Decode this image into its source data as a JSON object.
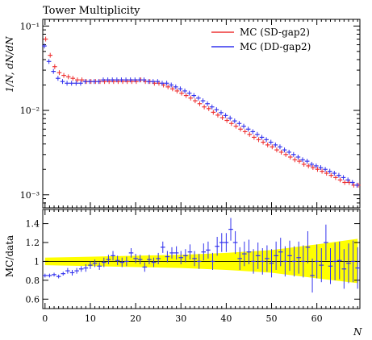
{
  "chart_data": [
    {
      "panel": "main",
      "type": "scatter",
      "title": "Tower Multiplicity",
      "xlabel": "",
      "ylabel": "1/N, dN/dN",
      "yscale": "log",
      "xlim": [
        -0.5,
        69.5
      ],
      "ylim": [
        0.0007,
        0.12
      ],
      "ytick_labels": [
        "10⁻¹",
        "10⁻²",
        "10⁻³"
      ],
      "legend_placement": "top-right",
      "series": [
        {
          "name": "MC (SD-gap2)",
          "color": "#ee3333",
          "x": [
            0,
            1,
            2,
            3,
            4,
            5,
            6,
            7,
            8,
            9,
            10,
            11,
            12,
            13,
            14,
            15,
            16,
            17,
            18,
            19,
            20,
            21,
            22,
            23,
            24,
            25,
            26,
            27,
            28,
            29,
            30,
            31,
            32,
            33,
            34,
            35,
            36,
            37,
            38,
            39,
            40,
            41,
            42,
            43,
            44,
            45,
            46,
            47,
            48,
            49,
            50,
            51,
            52,
            53,
            54,
            55,
            56,
            57,
            58,
            59,
            60,
            61,
            62,
            63,
            64,
            65,
            66,
            67,
            68,
            69
          ],
          "y": [
            0.07,
            0.045,
            0.033,
            0.028,
            0.026,
            0.025,
            0.024,
            0.023,
            0.023,
            0.022,
            0.022,
            0.022,
            0.022,
            0.022,
            0.022,
            0.022,
            0.022,
            0.022,
            0.022,
            0.022,
            0.022,
            0.023,
            0.022,
            0.022,
            0.021,
            0.021,
            0.02,
            0.019,
            0.018,
            0.017,
            0.016,
            0.015,
            0.014,
            0.013,
            0.012,
            0.011,
            0.0105,
            0.0095,
            0.0088,
            0.0082,
            0.0076,
            0.007,
            0.0065,
            0.006,
            0.0056,
            0.0052,
            0.0048,
            0.0045,
            0.0042,
            0.0039,
            0.0037,
            0.0034,
            0.0032,
            0.003,
            0.0028,
            0.0026,
            0.0025,
            0.0023,
            0.0022,
            0.0021,
            0.002,
            0.0019,
            0.0018,
            0.0017,
            0.0016,
            0.0015,
            0.0014,
            0.0014,
            0.0013,
            0.0013
          ]
        },
        {
          "name": "MC (DD-gap2)",
          "color": "#3333ee",
          "x": [
            0,
            1,
            2,
            3,
            4,
            5,
            6,
            7,
            8,
            9,
            10,
            11,
            12,
            13,
            14,
            15,
            16,
            17,
            18,
            19,
            20,
            21,
            22,
            23,
            24,
            25,
            26,
            27,
            28,
            29,
            30,
            31,
            32,
            33,
            34,
            35,
            36,
            37,
            38,
            39,
            40,
            41,
            42,
            43,
            44,
            45,
            46,
            47,
            48,
            49,
            50,
            51,
            52,
            53,
            54,
            55,
            56,
            57,
            58,
            59,
            60,
            61,
            62,
            63,
            64,
            65,
            66,
            67,
            68,
            69
          ],
          "y": [
            0.058,
            0.038,
            0.029,
            0.024,
            0.022,
            0.021,
            0.021,
            0.021,
            0.021,
            0.022,
            0.022,
            0.022,
            0.022,
            0.023,
            0.023,
            0.023,
            0.023,
            0.023,
            0.023,
            0.023,
            0.023,
            0.023,
            0.023,
            0.022,
            0.022,
            0.022,
            0.021,
            0.021,
            0.02,
            0.019,
            0.018,
            0.017,
            0.016,
            0.015,
            0.014,
            0.013,
            0.012,
            0.011,
            0.0102,
            0.0094,
            0.0087,
            0.0081,
            0.0075,
            0.007,
            0.0065,
            0.006,
            0.0056,
            0.0052,
            0.0048,
            0.0045,
            0.0042,
            0.0039,
            0.0037,
            0.0034,
            0.0032,
            0.003,
            0.0028,
            0.0026,
            0.0025,
            0.0023,
            0.0022,
            0.0021,
            0.002,
            0.0019,
            0.0018,
            0.0017,
            0.0016,
            0.0015,
            0.0014,
            0.0013
          ]
        }
      ]
    },
    {
      "panel": "ratio",
      "type": "scatter",
      "title": "",
      "xlabel": "N",
      "ylabel": "MC/data",
      "xlim": [
        -0.5,
        69.5
      ],
      "ylim": [
        0.5,
        1.55
      ],
      "x_ticks": [
        0,
        10,
        20,
        30,
        40,
        50,
        60
      ],
      "y_ticks": [
        0.6,
        0.8,
        1,
        1.2,
        1.4
      ],
      "band": {
        "color": "#ffff00",
        "x": [
          0,
          10,
          20,
          30,
          40,
          50,
          60,
          69
        ],
        "lower": [
          0.96,
          0.95,
          0.94,
          0.93,
          0.91,
          0.88,
          0.82,
          0.77
        ],
        "upper": [
          1.04,
          1.05,
          1.06,
          1.07,
          1.09,
          1.12,
          1.18,
          1.24
        ]
      },
      "series": [
        {
          "name": "MC (DD-gap2)",
          "color": "#3333ee",
          "x": [
            0,
            1,
            2,
            3,
            4,
            5,
            6,
            7,
            8,
            9,
            10,
            11,
            12,
            13,
            14,
            15,
            16,
            17,
            18,
            19,
            20,
            21,
            22,
            23,
            24,
            25,
            26,
            27,
            28,
            29,
            30,
            31,
            32,
            33,
            34,
            35,
            36,
            37,
            38,
            39,
            40,
            41,
            42,
            43,
            44,
            45,
            46,
            47,
            48,
            49,
            50,
            51,
            52,
            53,
            54,
            55,
            56,
            57,
            58,
            59,
            60,
            61,
            62,
            63,
            64,
            65,
            66,
            67,
            68,
            69
          ],
          "y": [
            0.85,
            0.85,
            0.86,
            0.84,
            0.87,
            0.9,
            0.88,
            0.9,
            0.92,
            0.93,
            0.96,
            0.98,
            0.95,
            0.99,
            1.02,
            1.06,
            1.01,
            0.99,
            1.0,
            1.09,
            1.03,
            1.02,
            0.94,
            1.02,
            0.99,
            1.03,
            1.15,
            1.05,
            1.09,
            1.09,
            1.04,
            1.06,
            1.1,
            1.03,
            1.0,
            1.1,
            1.12,
            1.0,
            1.16,
            1.2,
            1.2,
            1.34,
            1.2,
            1.03,
            1.08,
            1.1,
            1.0,
            1.06,
            1.0,
            1.03,
            0.98,
            1.06,
            1.1,
            1.0,
            1.06,
            1.0,
            1.04,
            1.0,
            1.15,
            0.85,
            1.0,
            0.96,
            1.2,
            0.95,
            1.0,
            1.01,
            0.92,
            0.98,
            1.0,
            0.93
          ],
          "err": [
            0.02,
            0.02,
            0.02,
            0.02,
            0.02,
            0.03,
            0.03,
            0.03,
            0.03,
            0.04,
            0.04,
            0.04,
            0.04,
            0.05,
            0.05,
            0.05,
            0.05,
            0.05,
            0.05,
            0.05,
            0.05,
            0.05,
            0.05,
            0.05,
            0.05,
            0.06,
            0.06,
            0.06,
            0.06,
            0.07,
            0.07,
            0.07,
            0.08,
            0.08,
            0.08,
            0.09,
            0.09,
            0.09,
            0.1,
            0.1,
            0.1,
            0.12,
            0.12,
            0.12,
            0.13,
            0.13,
            0.13,
            0.14,
            0.14,
            0.14,
            0.15,
            0.15,
            0.15,
            0.16,
            0.16,
            0.16,
            0.17,
            0.17,
            0.17,
            0.18,
            0.18,
            0.18,
            0.19,
            0.19,
            0.2,
            0.2,
            0.21,
            0.21,
            0.22,
            0.22
          ]
        }
      ]
    }
  ]
}
